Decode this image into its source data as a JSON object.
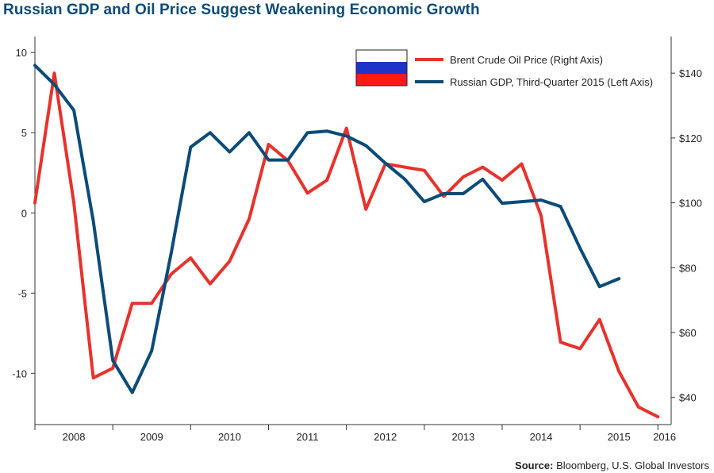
{
  "title": "Russian GDP and Oil Price Suggest Weakening Economic Growth",
  "source": {
    "label": "Source:",
    "text": "Bloomberg, U.S. Global Investors"
  },
  "colors": {
    "title": "#0b4b78",
    "oil": "#e8322c",
    "gdp": "#0b4b78"
  },
  "chart_data": {
    "type": "line",
    "title": "Russian GDP and Oil Price Suggest Weakening Economic Growth",
    "grid": false,
    "legend_position": "top-right",
    "legend_icon": "russia-flag",
    "x_labels": [
      "2008",
      "2009",
      "2010",
      "2011",
      "2012",
      "2013",
      "2014",
      "2015",
      "2016"
    ],
    "x_range": [
      2008.0,
      2016.17
    ],
    "y_left": {
      "lim": [
        -13.2,
        11
      ],
      "ticks": [
        10,
        5,
        0,
        -5,
        -10
      ],
      "tick_labels": [
        "10",
        "5",
        "0",
        "-5",
        "-10"
      ]
    },
    "y_right": {
      "lim": [
        31.6,
        151.3
      ],
      "ticks": [
        140,
        120,
        100,
        80,
        60,
        40
      ],
      "tick_labels": [
        "$140",
        "$120",
        "$100",
        "$80",
        "$60",
        "$40"
      ]
    },
    "series": [
      {
        "name": "Brent Crude Oil Price (Right Axis)",
        "axis": "right",
        "color": "#e8322c",
        "points": [
          [
            2008.0,
            100
          ],
          [
            2008.25,
            140
          ],
          [
            2008.5,
            100
          ],
          [
            2008.75,
            46
          ],
          [
            2009.0,
            49
          ],
          [
            2009.25,
            69
          ],
          [
            2009.5,
            69
          ],
          [
            2009.75,
            78
          ],
          [
            2010.0,
            83
          ],
          [
            2010.25,
            75
          ],
          [
            2010.5,
            82
          ],
          [
            2010.75,
            95
          ],
          [
            2011.0,
            118
          ],
          [
            2011.25,
            113
          ],
          [
            2011.5,
            103
          ],
          [
            2011.75,
            107
          ],
          [
            2012.0,
            123
          ],
          [
            2012.25,
            98
          ],
          [
            2012.5,
            112
          ],
          [
            2012.75,
            111
          ],
          [
            2013.0,
            110
          ],
          [
            2013.25,
            102
          ],
          [
            2013.5,
            108
          ],
          [
            2013.75,
            111
          ],
          [
            2014.0,
            107
          ],
          [
            2014.25,
            112
          ],
          [
            2014.5,
            96
          ],
          [
            2014.75,
            57
          ],
          [
            2015.0,
            55
          ],
          [
            2015.25,
            64
          ],
          [
            2015.5,
            48
          ],
          [
            2015.75,
            37
          ],
          [
            2016.0,
            34
          ]
        ]
      },
      {
        "name": "Russian GDP, Third-Quarter 2015 (Left Axis)",
        "axis": "left",
        "color": "#0b4b78",
        "points": [
          [
            2008.0,
            9.2
          ],
          [
            2008.25,
            8.0
          ],
          [
            2008.5,
            6.4
          ],
          [
            2008.75,
            -0.5
          ],
          [
            2009.0,
            -9.2
          ],
          [
            2009.25,
            -11.2
          ],
          [
            2009.5,
            -8.6
          ],
          [
            2009.75,
            -2.5
          ],
          [
            2010.0,
            4.1
          ],
          [
            2010.25,
            5.0
          ],
          [
            2010.5,
            3.8
          ],
          [
            2010.75,
            5.0
          ],
          [
            2011.0,
            3.3
          ],
          [
            2011.25,
            3.3
          ],
          [
            2011.5,
            5.0
          ],
          [
            2011.75,
            5.1
          ],
          [
            2012.0,
            4.8
          ],
          [
            2012.25,
            4.2
          ],
          [
            2012.5,
            3.1
          ],
          [
            2012.75,
            2.1
          ],
          [
            2013.0,
            0.7
          ],
          [
            2013.25,
            1.2
          ],
          [
            2013.5,
            1.2
          ],
          [
            2013.75,
            2.1
          ],
          [
            2014.0,
            0.6
          ],
          [
            2014.25,
            0.7
          ],
          [
            2014.5,
            0.8
          ],
          [
            2014.75,
            0.4
          ],
          [
            2015.0,
            -2.2
          ],
          [
            2015.25,
            -4.6
          ],
          [
            2015.5,
            -4.1
          ]
        ]
      }
    ]
  }
}
